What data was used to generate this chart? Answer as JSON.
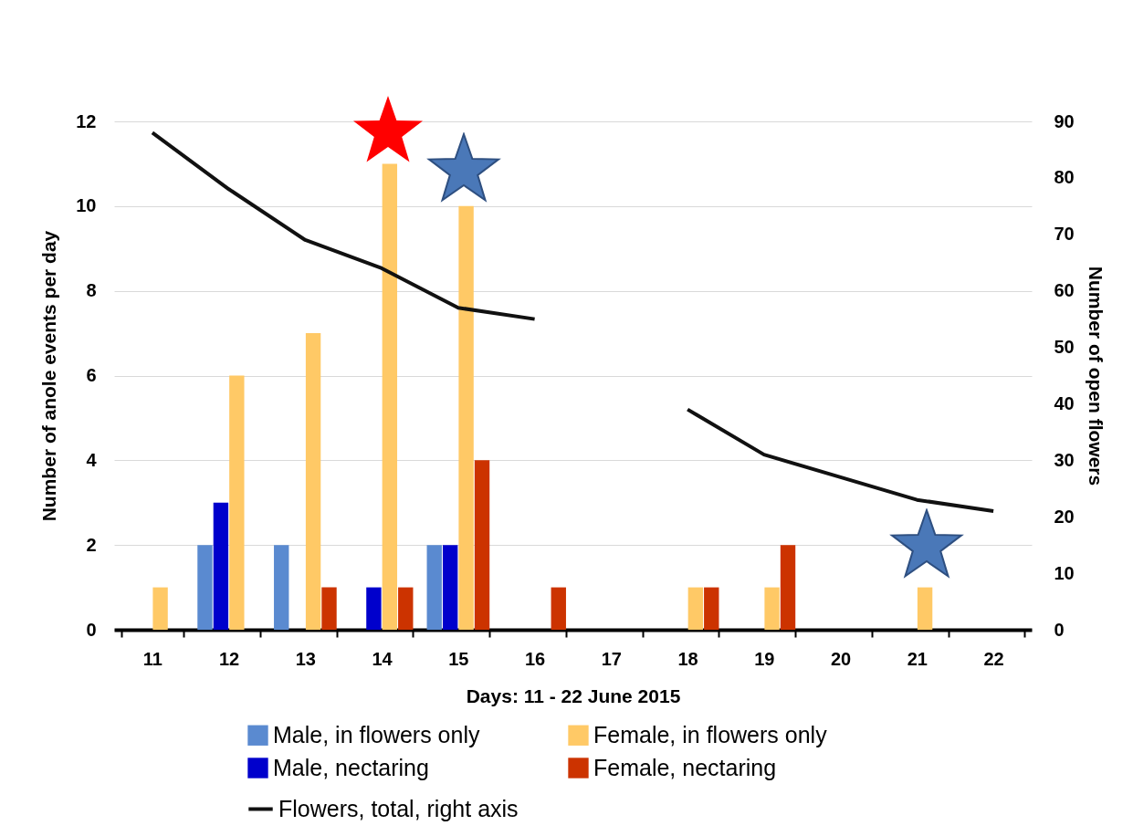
{
  "chart_data": {
    "type": "bar",
    "xlabel": "Days: 11 - 22 June 2015",
    "ylabel": "Number of anole events per day",
    "y2label": "Number of open flowers",
    "categories": [
      "11",
      "12",
      "13",
      "14",
      "15",
      "16",
      "17",
      "18",
      "19",
      "20",
      "21",
      "22"
    ],
    "series": [
      {
        "name": "Male, in flowers only",
        "color": "#5a8ad0",
        "values": [
          0,
          2,
          2,
          0,
          2,
          0,
          0,
          0,
          0,
          0,
          0,
          0
        ]
      },
      {
        "name": "Male, nectaring",
        "color": "#0000cc",
        "values": [
          0,
          3,
          0,
          1,
          2,
          0,
          0,
          0,
          0,
          0,
          0,
          0
        ]
      },
      {
        "name": "Female, in flowers only",
        "color": "#ffc966",
        "values": [
          1,
          6,
          7,
          11,
          10,
          0,
          0,
          1,
          1,
          0,
          1,
          0
        ]
      },
      {
        "name": "Female, nectaring",
        "color": "#cc3300",
        "values": [
          0,
          0,
          1,
          1,
          4,
          1,
          0,
          1,
          2,
          0,
          0,
          0
        ]
      },
      {
        "name": "Flowers, total, right axis",
        "type": "line",
        "axis": "y2",
        "color": "#111111",
        "values": [
          88,
          78,
          69,
          64,
          57,
          55,
          null,
          39,
          31,
          27,
          23,
          21
        ]
      }
    ],
    "ylim": [
      0,
      12
    ],
    "yticks": [
      0,
      2,
      4,
      6,
      8,
      10,
      12
    ],
    "y2lim": [
      0,
      90
    ],
    "y2ticks": [
      0,
      10,
      20,
      30,
      40,
      50,
      60,
      70,
      80,
      90
    ],
    "grid": "y",
    "legend": "bottom"
  }
}
